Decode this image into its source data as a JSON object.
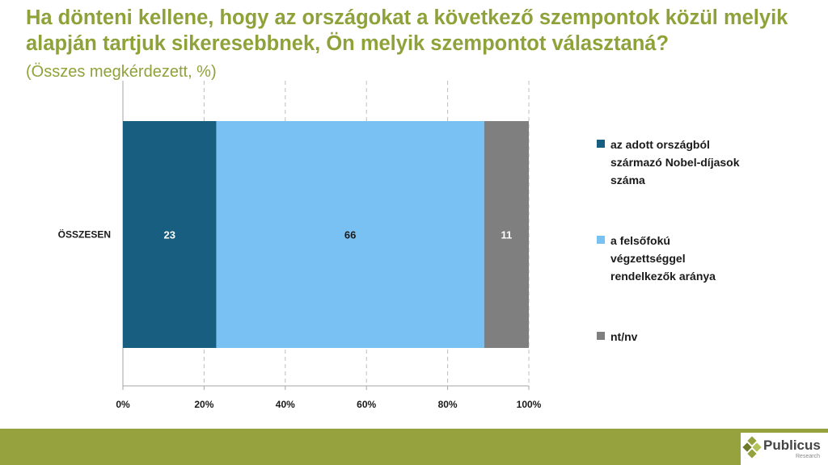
{
  "page": {
    "title": "Ha dönteni kellene, hogy az országokat a következő szempontok közül melyik alapján tartjuk sikeresebbnek, Ön melyik szempontot választaná?",
    "subtitle": "(Összes megkérdezett, %)"
  },
  "logo": {
    "name": "Publicus",
    "sub": "Research"
  },
  "chart_data": {
    "type": "bar",
    "orientation": "horizontal",
    "stacked": true,
    "categories": [
      "ÖSSZESEN"
    ],
    "series": [
      {
        "name": "az adott országból származó Nobel-díjasok száma",
        "values": [
          23
        ],
        "color": "#175E80"
      },
      {
        "name": "a felsőfokú végzettséggel rendelkezők aránya",
        "values": [
          66
        ],
        "color": "#7AC1F3"
      },
      {
        "name": "nt/nv",
        "values": [
          11
        ],
        "color": "#7F7F7F"
      }
    ],
    "xlim": [
      0,
      100
    ],
    "xticks": [
      "0%",
      "20%",
      "40%",
      "60%",
      "80%",
      "100%"
    ],
    "grid": "vertical dashed",
    "legend_position": "right"
  }
}
